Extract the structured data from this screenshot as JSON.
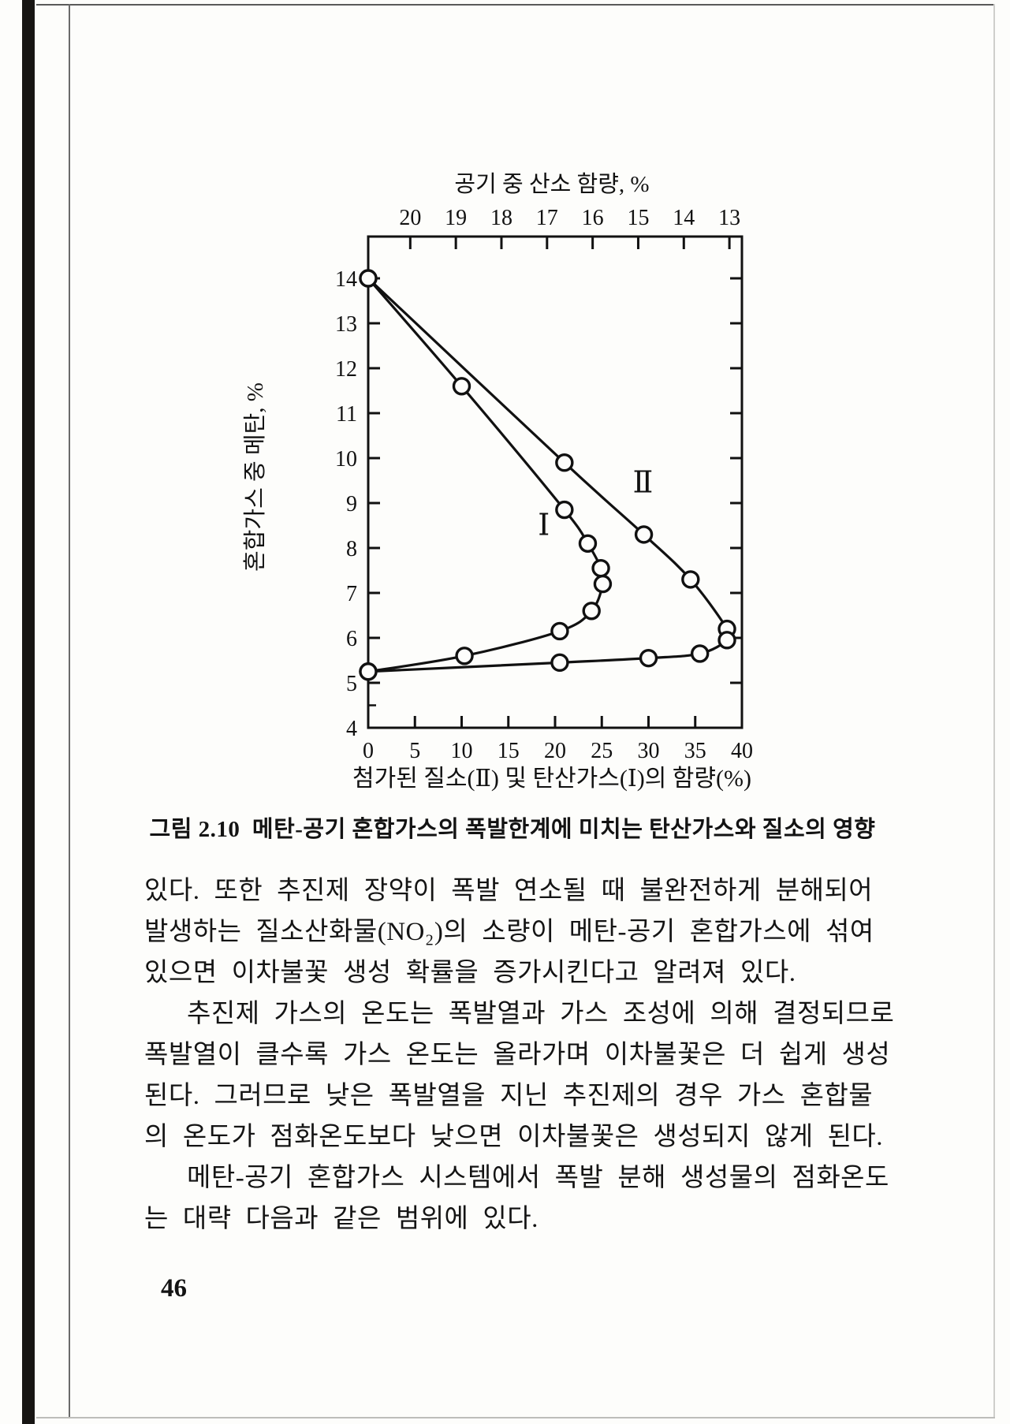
{
  "page": {
    "number": "46",
    "caption": "그림 2.10  메탄-공기 혼합가스의 폭발한계에 미치는 탄산가스와 질소의 영향",
    "body_lines": [
      "있다. 또한 추진제 장약이 폭발 연소될 때 불완전하게 분해되어",
      "발생하는 질소산화물(NO₂)의 소량이 메탄-공기 혼합가스에 섞여",
      "있으면 이차불꽃 생성 확률을 증가시킨다고 알려져 있다.",
      "   추진제 가스의 온도는 폭발열과 가스 조성에 의해 결정되므로",
      "폭발열이 클수록 가스 온도는 올라가며 이차불꽃은 더 쉽게 생성",
      "된다. 그러므로 낮은 폭발열을 지닌 추진제의 경우 가스 혼합물",
      "의 온도가 점화온도보다 낮으면 이차불꽃은 생성되지 않게 된다.",
      "   메탄-공기 혼합가스 시스템에서 폭발 분해 생성물의 점화온도",
      "는 대략 다음과 같은 범위에 있다."
    ]
  },
  "colors": {
    "ink": "#111111",
    "paper": "#fdfdfb"
  },
  "chart_data": {
    "type": "line",
    "title": "",
    "top_axis": {
      "title": "공기 중 산소 함량, %",
      "tick_labels": [
        "20",
        "19",
        "18",
        "17",
        "16",
        "15",
        "14",
        "13"
      ]
    },
    "xlabel": "첨가된 질소(Ⅱ) 및 탄산가스(Ⅰ)의 함량(%)",
    "ylabel": "혼합가스 중 메탄, %",
    "xlim": [
      0,
      40
    ],
    "ylim": [
      4,
      14.95
    ],
    "x_ticks": [
      0,
      5,
      10,
      15,
      20,
      25,
      30,
      35,
      40
    ],
    "y_ticks": [
      4,
      5,
      6,
      7,
      8,
      9,
      10,
      11,
      12,
      13,
      14
    ],
    "grid": false,
    "legend_position": "inline-labels",
    "series": [
      {
        "name": "Ⅰ",
        "label_x": 18.8,
        "label_y": 8.5,
        "points": [
          [
            0,
            14
          ],
          [
            10,
            11.6
          ],
          [
            21,
            8.85
          ],
          [
            23.5,
            8.1
          ],
          [
            24.9,
            7.55
          ],
          [
            25.1,
            7.2
          ],
          [
            23.9,
            6.6
          ],
          [
            20.5,
            6.15
          ],
          [
            10.3,
            5.6
          ],
          [
            0,
            5.25
          ]
        ]
      },
      {
        "name": "Ⅱ",
        "label_x": 29.4,
        "label_y": 9.45,
        "points": [
          [
            0,
            14
          ],
          [
            21,
            9.9
          ],
          [
            29.5,
            8.3
          ],
          [
            34.5,
            7.3
          ],
          [
            38.4,
            6.2
          ],
          [
            38.4,
            5.95
          ],
          [
            35.5,
            5.65
          ],
          [
            30,
            5.55
          ],
          [
            20.5,
            5.45
          ],
          [
            0,
            5.25
          ]
        ]
      }
    ]
  }
}
